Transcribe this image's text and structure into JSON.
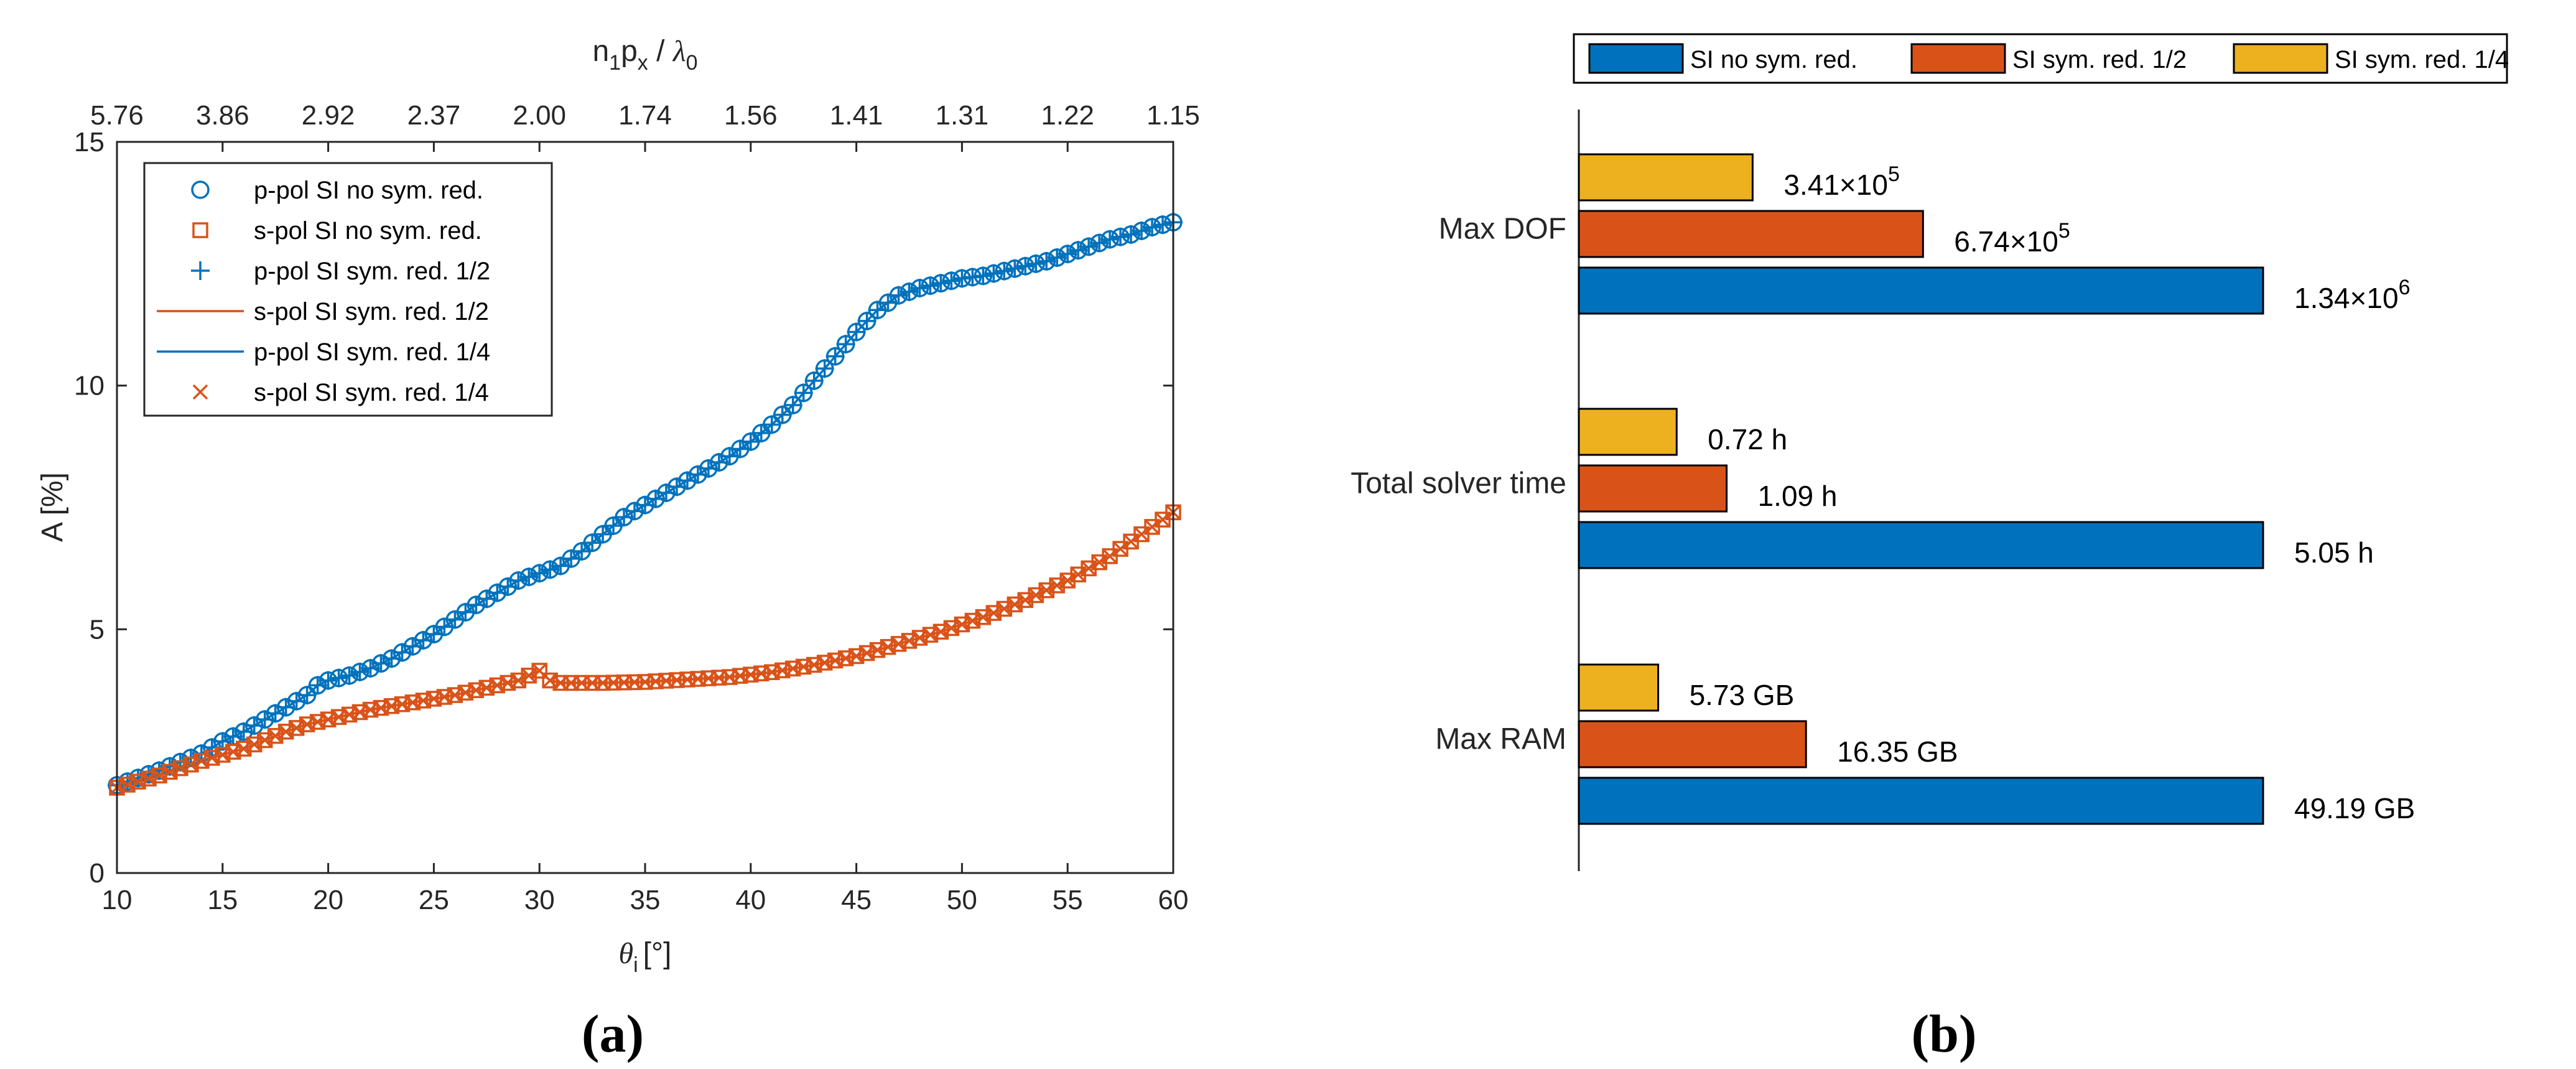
{
  "chart_data": [
    {
      "type": "scatter",
      "panel_label": "(a)",
      "xlabel_symbol": "θ",
      "xlabel_sub": "i",
      "xlabel_unit": "[°]",
      "ylabel": "A [%]",
      "top_xlabel": {
        "n": "n",
        "n_sub": "1",
        "p": "p",
        "p_sub": "x",
        "slash": " / ",
        "lambda": "λ",
        "lambda_sub": "0"
      },
      "xlim": [
        10,
        60
      ],
      "ylim": [
        0,
        15
      ],
      "xticks": [
        10,
        15,
        20,
        25,
        30,
        35,
        40,
        45,
        50,
        55,
        60
      ],
      "xtick_labels": [
        "10",
        "15",
        "20",
        "25",
        "30",
        "35",
        "40",
        "45",
        "50",
        "55",
        "60"
      ],
      "yticks": [
        0,
        5,
        10,
        15
      ],
      "ytick_labels": [
        "0",
        "5",
        "10",
        "15"
      ],
      "top_ticks_at_theta": [
        10,
        15,
        20,
        25,
        30,
        35,
        40,
        45,
        50,
        55,
        60
      ],
      "top_tick_labels": [
        "5.76",
        "3.86",
        "2.92",
        "2.37",
        "2.00",
        "1.74",
        "1.56",
        "1.41",
        "1.31",
        "1.22",
        "1.15"
      ],
      "p_pol_curve": {
        "x": [
          10,
          12,
          14,
          15,
          16,
          17,
          18,
          19,
          19.5,
          20,
          21,
          22,
          23,
          24,
          25,
          26,
          27,
          28,
          29,
          30,
          31,
          32,
          33,
          34,
          35,
          36,
          37,
          38,
          39,
          40,
          41,
          42,
          43,
          44,
          45,
          46,
          47,
          48,
          49,
          50,
          51,
          52,
          53,
          54,
          55,
          56,
          57,
          58,
          59,
          60
        ],
        "y": [
          1.8,
          2.1,
          2.45,
          2.7,
          2.9,
          3.15,
          3.4,
          3.65,
          3.85,
          3.95,
          4.05,
          4.2,
          4.4,
          4.65,
          4.9,
          5.2,
          5.5,
          5.75,
          6.0,
          6.15,
          6.3,
          6.6,
          6.95,
          7.3,
          7.55,
          7.8,
          8.05,
          8.3,
          8.55,
          8.85,
          9.2,
          9.6,
          10.1,
          10.6,
          11.1,
          11.55,
          11.85,
          12.0,
          12.1,
          12.2,
          12.25,
          12.35,
          12.45,
          12.55,
          12.7,
          12.85,
          13.0,
          13.1,
          13.25,
          13.35
        ]
      },
      "s_pol_curve": {
        "x": [
          10,
          12,
          14,
          16,
          18,
          19,
          20,
          22,
          24,
          26,
          28,
          29,
          30,
          30.5,
          31,
          33,
          35,
          37,
          39,
          41,
          43,
          45,
          47,
          49,
          50,
          51,
          52,
          53,
          54,
          55,
          56,
          57,
          58,
          59,
          60
        ],
        "y": [
          1.75,
          2.0,
          2.3,
          2.55,
          2.9,
          3.05,
          3.15,
          3.35,
          3.5,
          3.65,
          3.85,
          3.95,
          4.15,
          3.95,
          3.9,
          3.9,
          3.92,
          3.97,
          4.02,
          4.12,
          4.27,
          4.45,
          4.7,
          4.95,
          5.1,
          5.25,
          5.42,
          5.6,
          5.8,
          6.0,
          6.25,
          6.5,
          6.8,
          7.1,
          7.4
        ]
      },
      "legend": [
        {
          "label": "p-pol SI no sym. red.",
          "marker": "circle",
          "color": "#0072BD"
        },
        {
          "label": "s-pol SI no sym. red.",
          "marker": "square",
          "color": "#D95319"
        },
        {
          "label": "p-pol SI sym. red. 1/2",
          "marker": "plus",
          "color": "#0072BD"
        },
        {
          "label": "s-pol SI sym. red. 1/2",
          "marker": "line",
          "color": "#D95319"
        },
        {
          "label": "p-pol SI sym. red. 1/4",
          "marker": "line",
          "color": "#0072BD"
        },
        {
          "label": "s-pol SI sym. red. 1/4",
          "marker": "x",
          "color": "#D95319"
        }
      ]
    },
    {
      "type": "bar",
      "orientation": "horizontal",
      "panel_label": "(b)",
      "categories": [
        "Max DOF",
        "Total solver time",
        "Max RAM"
      ],
      "series": [
        {
          "name": "SI no sym. red.",
          "color": "#0072BD",
          "values": [
            1,
            1,
            1
          ],
          "value_labels": [
            "1.34",
            "5.05 h",
            "49.19 GB"
          ],
          "exponents": [
            "6",
            "",
            ""
          ]
        },
        {
          "name": "SI sym. red. 1/2",
          "color": "#D95319",
          "values": [
            0.503,
            0.216,
            0.332
          ],
          "value_labels": [
            "6.74",
            "1.09 h",
            "16.35 GB"
          ],
          "exponents": [
            "5",
            "",
            ""
          ]
        },
        {
          "name": "SI sym. red. 1/4",
          "color": "#EDB120",
          "values": [
            0.254,
            0.143,
            0.116
          ],
          "value_labels": [
            "3.41",
            "0.72 h",
            "5.73 GB"
          ],
          "exponents": [
            "5",
            "",
            ""
          ]
        }
      ],
      "times_symbol": "×10",
      "legend_position": "top"
    }
  ]
}
